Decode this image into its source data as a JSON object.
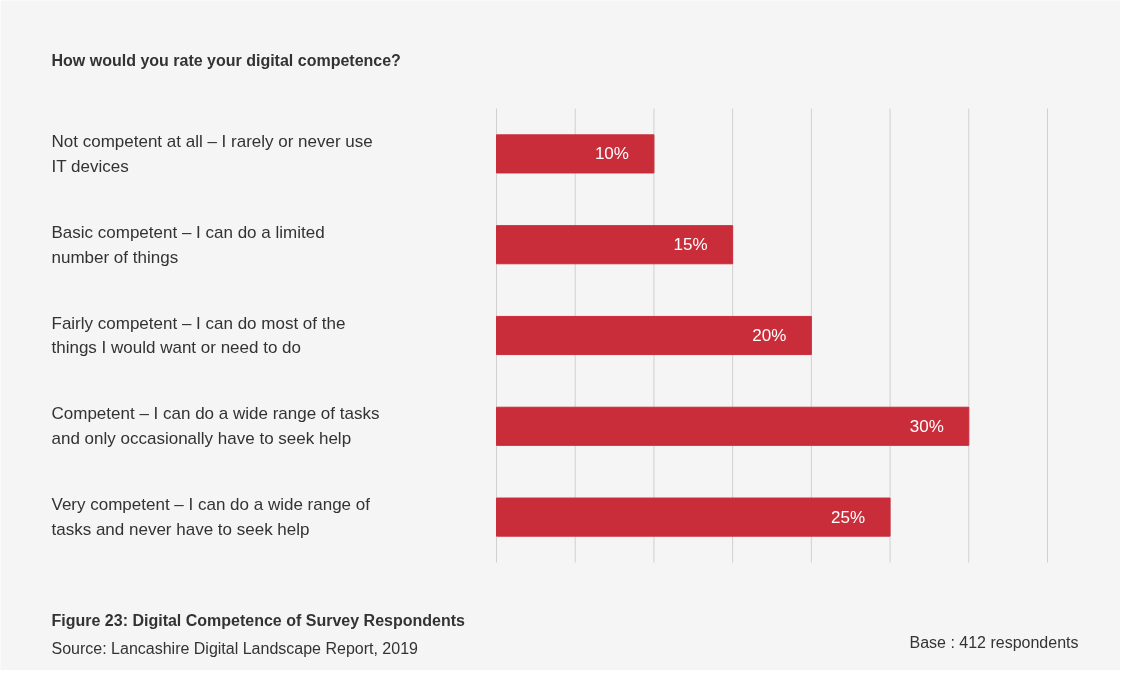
{
  "chart_data": {
    "type": "bar",
    "orientation": "horizontal",
    "title": "How would you rate your digital competence?",
    "categories": [
      "Not competent at all – I rarely or never use\nIT devices",
      "Basic competent – I can do a limited\nnumber of things",
      "Fairly competent – I can do most of the\nthings I would want or need to do",
      "Competent – I can do a wide range of tasks\nand only occasionally have to seek help",
      "Very competent – I can do a wide range of\ntasks and never have to seek help"
    ],
    "values": [
      10,
      15,
      20,
      30,
      25
    ],
    "color": "#c92d3a",
    "value_labels": [
      "10%",
      "15%",
      "20%",
      "30%",
      "25%"
    ],
    "xticks": [
      {
        "value": 0,
        "label": null
      },
      {
        "value": 5,
        "label": null
      },
      {
        "value": 10,
        "label": null
      },
      {
        "value": 15,
        "label": null
      },
      {
        "value": 20,
        "label": null
      },
      {
        "value": 25,
        "label": null
      },
      {
        "value": 30,
        "label": null
      },
      {
        "value": 35,
        "label": null
      }
    ],
    "tick_labels": "y",
    "grid": "x",
    "annotations": [
      "Figure 23: Digital Competence of Survey Respondents",
      "Source: Lancashire Digital Landscape Report, 2019",
      "Base : 412 respondents"
    ]
  }
}
